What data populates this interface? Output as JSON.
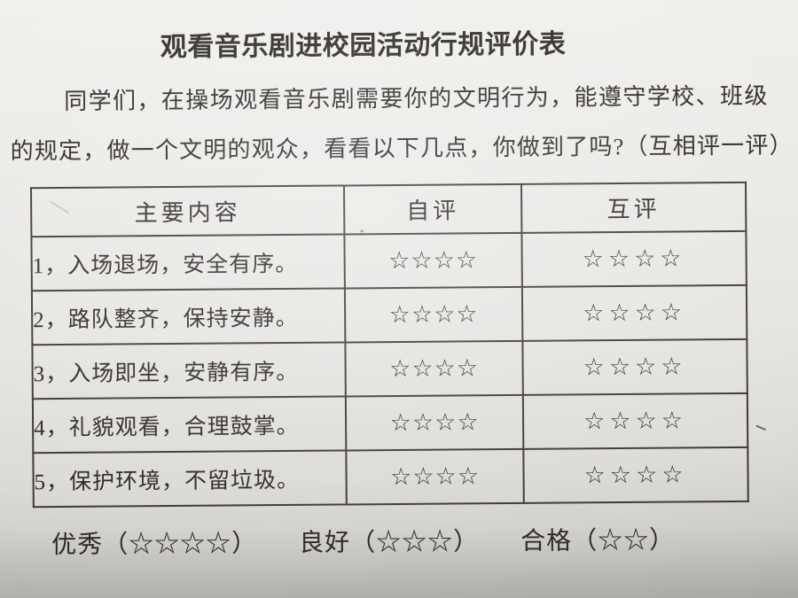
{
  "document": {
    "title": "观看音乐剧进校园活动行规评价表",
    "intro": {
      "line1": "同学们，在操场观看音乐剧需要你的文明行为，能遵守学校、班级",
      "line2": "的规定，做一个文明的观众，看看以下几点，你做到了吗?（互相评一评）"
    },
    "table": {
      "headers": {
        "content": "主要内容",
        "self": "自评",
        "peer": "互评"
      },
      "rows": [
        {
          "content": "1，入场退场，安全有序。",
          "self": "☆☆☆☆",
          "peer": "☆☆☆☆"
        },
        {
          "content": "2，路队整齐，保持安静。",
          "self": "☆☆☆☆",
          "peer": "☆☆☆☆"
        },
        {
          "content": "3，入场即坐，安静有序。",
          "self": "☆☆☆☆",
          "peer": "☆☆☆☆"
        },
        {
          "content": "4，礼貌观看，合理鼓掌。",
          "self": "☆☆☆☆",
          "peer": "☆☆☆☆"
        },
        {
          "content": "5，保护环境，不留垃圾。",
          "self": "☆☆☆☆",
          "peer": "☆☆☆☆"
        }
      ]
    },
    "legend": {
      "excellent": "优秀（☆☆☆☆）",
      "good": "良好（☆☆☆）",
      "pass": "合格（☆☆）"
    },
    "colors": {
      "paper": "#e9e7e4",
      "ink": "#2e2b29",
      "table_border": "#3d3a37"
    }
  }
}
